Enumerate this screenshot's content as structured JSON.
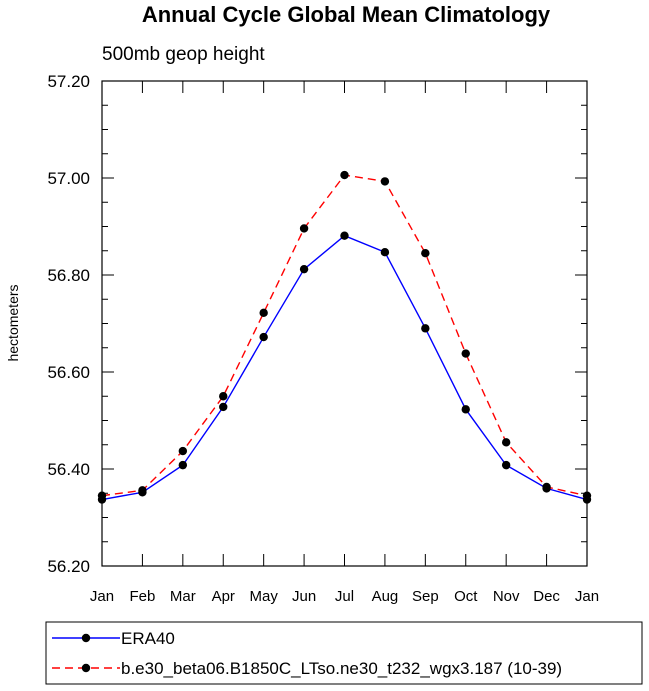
{
  "chart_data": {
    "type": "line",
    "title": "Annual Cycle Global Mean Climatology",
    "subtitle": "500mb geop height",
    "ylabel": "hectometers",
    "xlabel": "",
    "categories": [
      "Jan",
      "Feb",
      "Mar",
      "Apr",
      "May",
      "Jun",
      "Jul",
      "Aug",
      "Sep",
      "Oct",
      "Nov",
      "Dec",
      "Jan"
    ],
    "ylim": [
      56.2,
      57.2
    ],
    "yticks": [
      "56.20",
      "56.40",
      "56.60",
      "56.80",
      "57.00",
      "57.20"
    ],
    "grid": false,
    "legend_position": "bottom",
    "series": [
      {
        "name": "ERA40",
        "color": "#0000ff",
        "dash": "solid",
        "marker": "circle",
        "values": [
          56.337,
          56.352,
          56.408,
          56.528,
          56.672,
          56.812,
          56.881,
          56.847,
          56.69,
          56.523,
          56.408,
          56.36,
          56.337
        ]
      },
      {
        "name": "b.e30_beta06.B1850C_LTso.ne30_t232_wgx3.187 (10-39)",
        "color": "#ff0000",
        "dash": "dashed",
        "marker": "circle",
        "values": [
          56.345,
          56.356,
          56.437,
          56.55,
          56.722,
          56.896,
          57.006,
          56.993,
          56.845,
          56.638,
          56.455,
          56.363,
          56.345
        ]
      }
    ]
  }
}
